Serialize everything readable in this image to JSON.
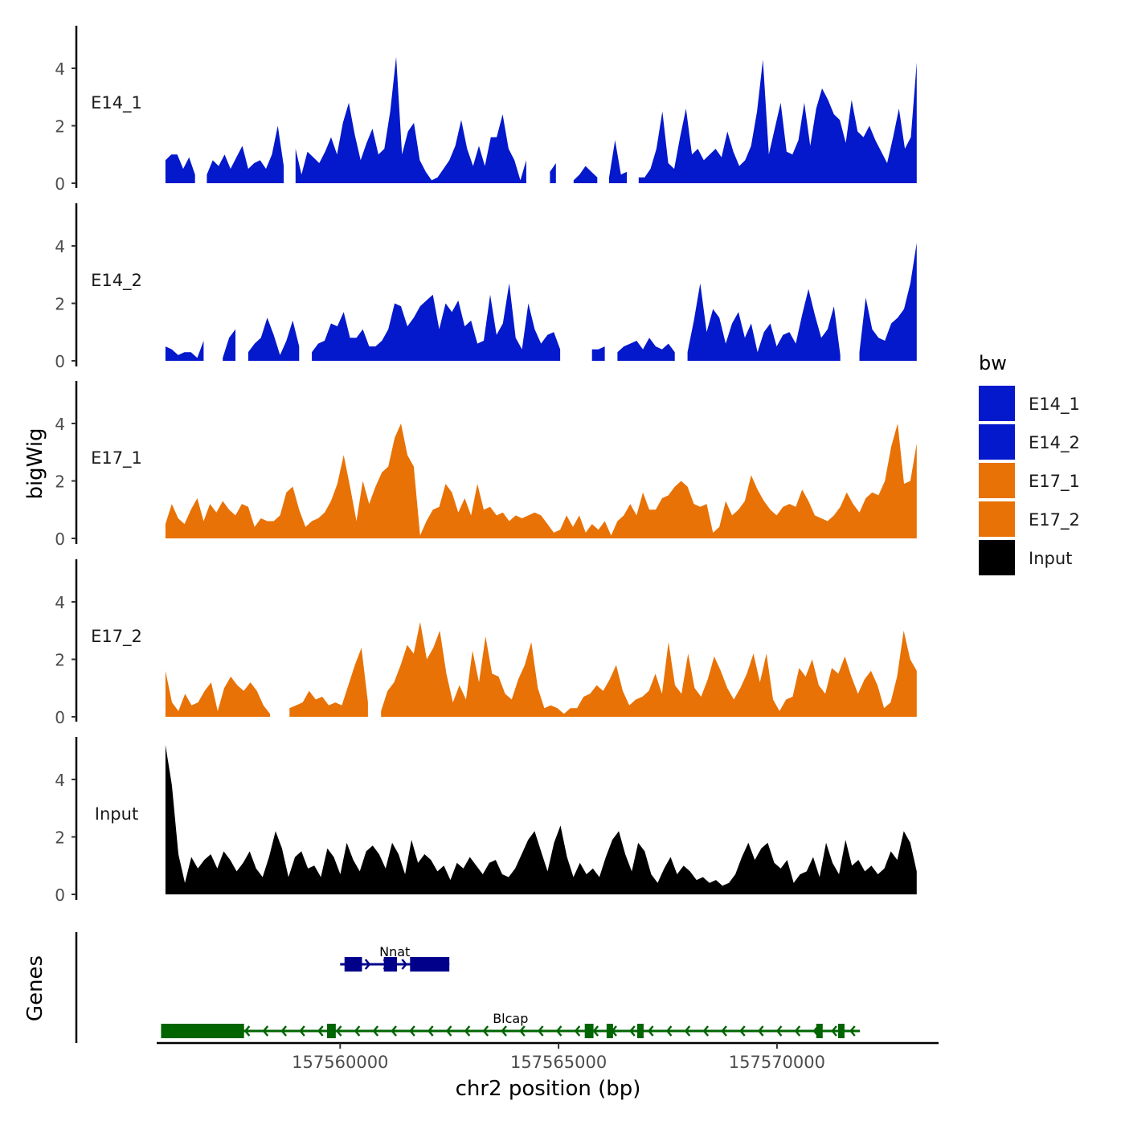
{
  "chart_data": {
    "type": "area",
    "title": "",
    "xlabel": "chr2 position (bp)",
    "ylabel": "bigWig",
    "genes_label": "Genes",
    "xlim": [
      157555800,
      157573700
    ],
    "x_ticks": [
      157560000,
      157565000,
      157570000
    ],
    "x_tick_labels": [
      "157560000",
      "157565000",
      "157570000"
    ],
    "ylim": [
      0,
      5.5
    ],
    "y_ticks": [
      0,
      2,
      4
    ],
    "y_tick_labels": [
      "0",
      "2",
      "4"
    ],
    "legend": {
      "title": "bw",
      "position": "right",
      "entries": [
        {
          "label": "E14_1",
          "color": "#0418CC"
        },
        {
          "label": "E14_2",
          "color": "#0418CC"
        },
        {
          "label": "E17_1",
          "color": "#E87205"
        },
        {
          "label": "E17_2",
          "color": "#E87205"
        },
        {
          "label": "Input",
          "color": "#000000"
        }
      ]
    },
    "x_start": 157556000,
    "x_end": 157573200,
    "series": [
      {
        "name": "E14_1",
        "color": "#0418CC",
        "values": [
          0.8,
          1.0,
          1.0,
          0.5,
          0.9,
          0.3,
          null,
          0.3,
          0.8,
          0.6,
          1.0,
          0.5,
          0.9,
          1.3,
          0.5,
          0.7,
          0.8,
          0.5,
          1.0,
          2.0,
          0.6,
          null,
          1.2,
          0.3,
          1.1,
          0.9,
          0.7,
          1.1,
          1.6,
          1.0,
          2.1,
          2.8,
          1.7,
          0.8,
          1.4,
          1.9,
          1.0,
          1.2,
          2.5,
          4.4,
          1.0,
          1.8,
          2.1,
          0.8,
          0.4,
          0.1,
          0.2,
          0.5,
          0.8,
          1.3,
          2.2,
          1.2,
          0.6,
          1.3,
          0.6,
          1.6,
          1.6,
          2.4,
          1.2,
          0.8,
          0.1,
          0.8,
          null,
          null,
          null,
          0.4,
          0.7,
          null,
          null,
          0.1,
          0.3,
          0.6,
          0.4,
          0.2,
          null,
          0.2,
          1.5,
          0.3,
          0.4,
          null,
          0.2,
          0.2,
          0.5,
          1.2,
          2.5,
          0.7,
          0.5,
          1.6,
          2.6,
          1.0,
          1.2,
          0.8,
          1.0,
          1.2,
          0.9,
          1.8,
          1.1,
          0.6,
          0.8,
          1.3,
          2.5,
          4.3,
          1.0,
          1.9,
          2.8,
          1.1,
          1.0,
          1.5,
          2.8,
          1.3,
          2.6,
          3.3,
          2.9,
          2.4,
          2.2,
          1.4,
          2.9,
          1.8,
          1.6,
          2.0,
          1.5,
          1.1,
          0.7,
          1.6,
          2.6,
          1.2,
          1.6,
          4.2
        ]
      },
      {
        "name": "E14_2",
        "color": "#0418CC",
        "values": [
          0.5,
          0.4,
          0.2,
          0.3,
          0.3,
          0.1,
          0.7,
          null,
          null,
          0.1,
          0.8,
          1.1,
          null,
          0.3,
          0.6,
          0.8,
          1.5,
          0.9,
          0.2,
          0.7,
          1.4,
          0.5,
          null,
          0.3,
          0.6,
          0.7,
          1.3,
          1.2,
          1.7,
          0.8,
          0.8,
          1.1,
          0.5,
          0.5,
          0.7,
          1.1,
          2.0,
          1.9,
          1.2,
          1.5,
          1.9,
          2.1,
          2.3,
          1.1,
          2.0,
          1.7,
          2.1,
          1.2,
          1.4,
          0.6,
          0.7,
          2.3,
          0.9,
          1.3,
          2.7,
          0.8,
          0.4,
          2.0,
          1.1,
          0.6,
          0.9,
          1.0,
          0.4,
          null,
          null,
          0.3,
          null,
          0.4,
          0.4,
          0.5,
          null,
          0.3,
          0.5,
          0.6,
          0.7,
          0.4,
          0.8,
          0.5,
          0.4,
          0.6,
          0.3,
          null,
          0.3,
          1.4,
          2.7,
          1.0,
          1.8,
          1.5,
          0.6,
          1.3,
          1.7,
          0.8,
          1.3,
          0.3,
          1.0,
          1.3,
          0.5,
          0.9,
          1.0,
          0.6,
          1.6,
          2.5,
          1.6,
          0.8,
          1.1,
          1.9,
          0.2,
          null,
          null,
          0.3,
          2.2,
          1.1,
          0.8,
          0.7,
          1.3,
          1.5,
          1.8,
          2.7,
          4.1
        ]
      },
      {
        "name": "E17_1",
        "color": "#E87205",
        "values": [
          0.5,
          1.2,
          0.7,
          0.5,
          1.0,
          1.4,
          0.6,
          1.2,
          0.9,
          1.3,
          1.0,
          0.8,
          1.2,
          1.1,
          0.4,
          0.7,
          0.6,
          0.6,
          0.8,
          1.6,
          1.8,
          1.0,
          0.4,
          0.6,
          0.7,
          0.9,
          1.3,
          1.9,
          2.9,
          1.8,
          0.6,
          2.0,
          1.2,
          1.8,
          2.3,
          2.5,
          3.5,
          4.0,
          2.9,
          2.5,
          0.1,
          0.6,
          1.0,
          1.1,
          1.9,
          1.6,
          0.9,
          1.4,
          0.8,
          1.9,
          1.0,
          1.1,
          0.8,
          0.9,
          0.6,
          0.8,
          0.7,
          0.8,
          0.9,
          0.8,
          0.5,
          0.2,
          0.3,
          0.8,
          0.4,
          0.8,
          0.2,
          0.5,
          0.3,
          0.6,
          0.1,
          0.6,
          0.8,
          1.2,
          0.8,
          1.6,
          1.0,
          1.0,
          1.4,
          1.5,
          1.8,
          2.0,
          1.8,
          1.2,
          1.1,
          1.2,
          0.2,
          0.4,
          1.3,
          0.8,
          1.0,
          1.3,
          2.2,
          1.7,
          1.3,
          1.0,
          0.8,
          1.1,
          1.2,
          1.1,
          1.7,
          1.3,
          0.8,
          0.7,
          0.6,
          0.8,
          1.1,
          1.6,
          1.2,
          0.9,
          1.4,
          1.6,
          1.5,
          2.0,
          3.2,
          4.0,
          1.9,
          2.0,
          3.3
        ]
      },
      {
        "name": "E17_2",
        "color": "#E87205",
        "values": [
          1.6,
          0.5,
          0.2,
          0.8,
          0.4,
          0.5,
          0.9,
          1.2,
          0.2,
          1.0,
          1.4,
          1.1,
          0.9,
          1.2,
          0.9,
          0.4,
          0.1,
          null,
          null,
          0.3,
          0.4,
          0.5,
          0.9,
          0.6,
          0.7,
          0.4,
          0.5,
          0.4,
          1.1,
          1.8,
          2.4,
          0.5,
          null,
          0.2,
          0.9,
          1.2,
          1.8,
          2.5,
          2.2,
          3.3,
          2.0,
          2.4,
          3.0,
          1.5,
          0.5,
          1.1,
          0.6,
          2.3,
          1.2,
          2.8,
          1.5,
          1.4,
          0.8,
          0.6,
          1.3,
          1.8,
          2.6,
          1.0,
          0.3,
          0.4,
          0.3,
          0.1,
          0.3,
          0.3,
          0.7,
          0.8,
          1.1,
          0.9,
          1.3,
          1.8,
          0.9,
          0.4,
          0.6,
          0.7,
          0.9,
          1.5,
          0.8,
          2.6,
          1.1,
          0.8,
          2.2,
          1.0,
          0.7,
          1.3,
          2.1,
          1.6,
          1.0,
          0.6,
          1.0,
          1.5,
          2.2,
          1.2,
          2.2,
          0.6,
          0.2,
          0.6,
          0.7,
          1.7,
          1.4,
          2.0,
          1.1,
          0.8,
          1.7,
          1.5,
          2.1,
          1.4,
          0.8,
          1.3,
          1.6,
          1.1,
          0.3,
          0.5,
          1.4,
          3.0,
          2.0,
          1.6
        ]
      },
      {
        "name": "Input",
        "color": "#000000",
        "values": [
          5.2,
          3.8,
          1.4,
          0.4,
          1.3,
          0.9,
          1.2,
          1.4,
          0.9,
          1.5,
          1.2,
          0.8,
          1.1,
          1.5,
          0.9,
          0.6,
          1.3,
          2.2,
          1.6,
          0.6,
          1.3,
          1.5,
          0.9,
          1.0,
          0.6,
          1.6,
          1.3,
          0.7,
          1.8,
          1.2,
          0.8,
          1.5,
          1.7,
          1.4,
          0.9,
          1.8,
          1.4,
          0.7,
          1.9,
          1.1,
          1.4,
          1.2,
          0.8,
          1.0,
          0.5,
          1.1,
          0.9,
          1.3,
          1.0,
          0.7,
          1.1,
          1.2,
          0.7,
          0.6,
          0.9,
          1.4,
          1.9,
          2.2,
          1.5,
          0.8,
          1.8,
          2.4,
          1.3,
          0.6,
          1.1,
          0.7,
          0.9,
          0.6,
          1.3,
          1.9,
          2.2,
          1.4,
          0.8,
          1.8,
          1.5,
          0.7,
          0.4,
          0.9,
          1.3,
          0.7,
          1.0,
          0.8,
          0.5,
          0.6,
          0.4,
          0.5,
          0.3,
          0.4,
          0.7,
          1.3,
          1.8,
          1.2,
          1.6,
          1.8,
          1.1,
          0.9,
          1.2,
          0.4,
          0.7,
          0.8,
          1.3,
          0.6,
          1.8,
          1.1,
          0.7,
          1.9,
          1.0,
          1.2,
          0.8,
          1.0,
          0.7,
          0.9,
          1.5,
          1.2,
          2.2,
          1.8,
          0.8
        ]
      }
    ],
    "genes": [
      {
        "name": "Nnat",
        "color": "#00008B",
        "strand": "+",
        "start": 157560000,
        "end": 157562500,
        "exons": [
          [
            157560100,
            157560500
          ],
          [
            157561000,
            157561300
          ],
          [
            157561600,
            157562500
          ]
        ]
      },
      {
        "name": "Blcap",
        "color": "#006400",
        "strand": "-",
        "start": 157555900,
        "end": 157571900,
        "exons": [
          [
            157555900,
            157557800
          ],
          [
            157559700,
            157559900
          ],
          [
            157565600,
            157565800
          ],
          [
            157566100,
            157566200
          ],
          [
            157566800,
            157566900
          ],
          [
            157570900,
            157571000
          ],
          [
            157571400,
            157571500
          ]
        ]
      }
    ]
  }
}
